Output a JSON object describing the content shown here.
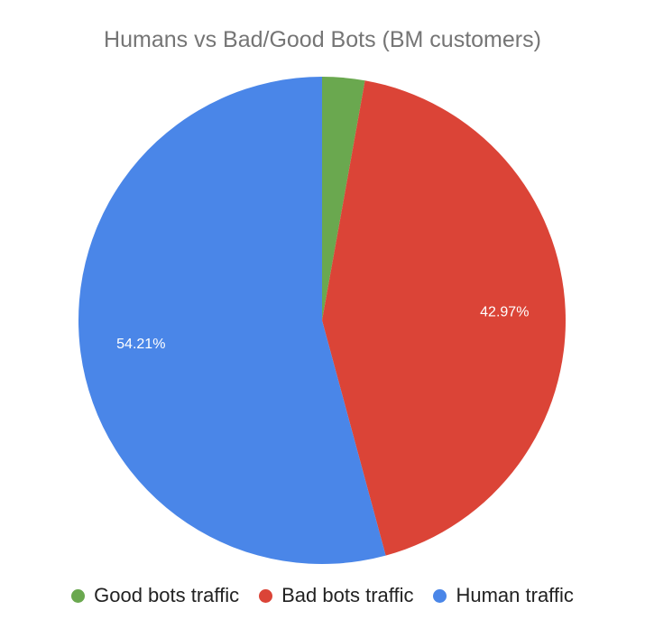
{
  "chart_data": {
    "type": "pie",
    "title": "Humans vs Bad/Good Bots (BM customers)",
    "slices": [
      {
        "name": "Good bots traffic",
        "value": 2.82,
        "color": "#6aa84f",
        "label": ""
      },
      {
        "name": "Bad bots traffic",
        "value": 42.97,
        "color": "#db4437",
        "label": "42.97%"
      },
      {
        "name": "Human traffic",
        "value": 54.21,
        "color": "#4a86e8",
        "label": "54.21%"
      }
    ],
    "legend_position": "bottom",
    "start_angle": "top",
    "direction": "clockwise"
  }
}
